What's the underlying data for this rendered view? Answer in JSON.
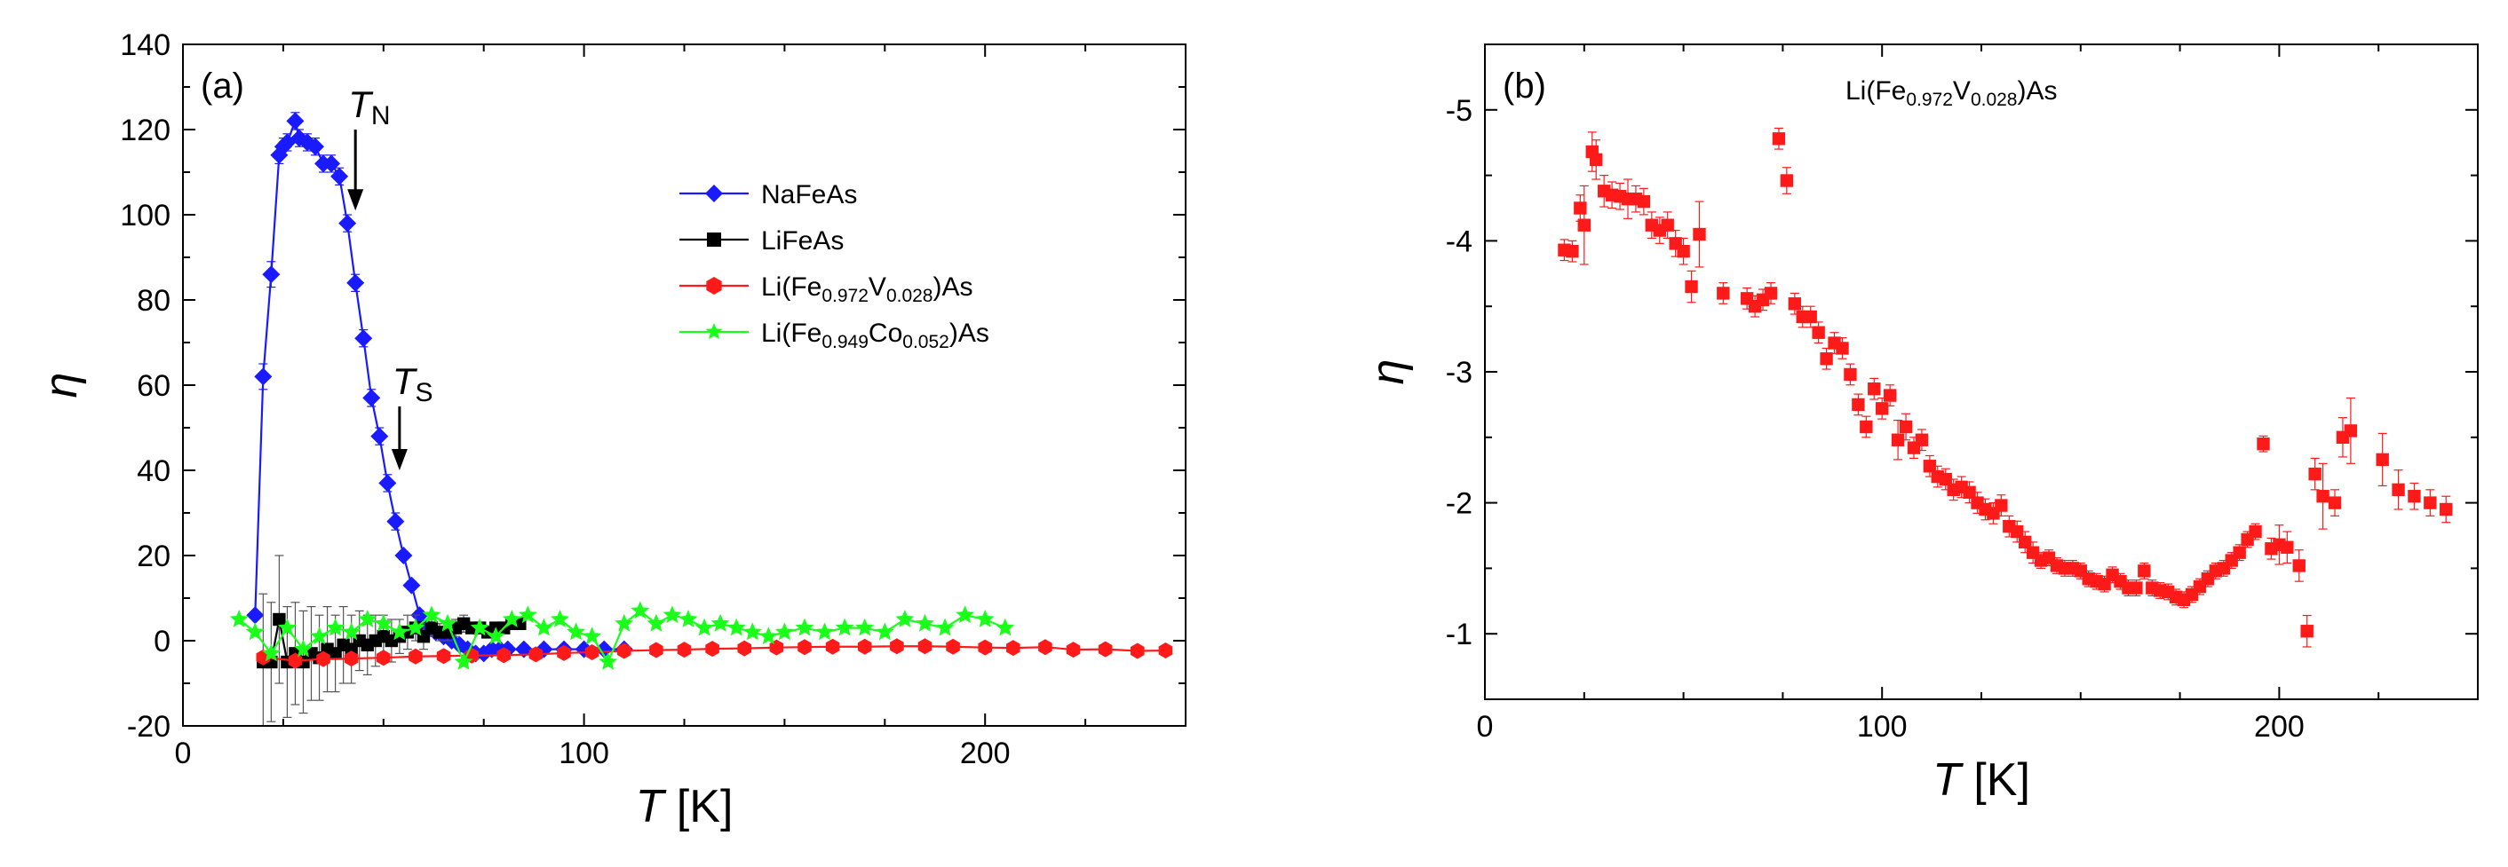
{
  "chart_data": [
    {
      "id": "a",
      "type": "line",
      "panel_label": "(a)",
      "xlabel_italic": "T",
      "xlabel_unit": " [K]",
      "ylabel": "η",
      "xlim": [
        0,
        250
      ],
      "ylim": [
        -20,
        140
      ],
      "xticks": [
        0,
        100,
        200
      ],
      "yticks": [
        -20,
        0,
        20,
        40,
        60,
        80,
        100,
        120,
        140
      ],
      "annotations": [
        {
          "id": "TN",
          "letter": "T",
          "sub": "N",
          "x": 43,
          "arrow_from": 120,
          "arrow_to": 101
        },
        {
          "id": "TS",
          "letter": "T",
          "sub": "S",
          "x": 54,
          "arrow_from": 55,
          "arrow_to": 40
        }
      ],
      "legend_position": "center-right",
      "series": [
        {
          "name": "NaFeAs",
          "label_parts": [
            [
              "NaFeAs",
              ""
            ]
          ],
          "color": "#1a1aff",
          "marker": "diamond",
          "x": [
            18,
            20,
            22,
            24,
            25,
            26,
            28,
            29,
            31,
            33,
            35,
            37,
            39,
            41,
            43,
            45,
            47,
            49,
            51,
            53,
            55,
            57,
            59,
            61,
            63,
            65,
            67,
            69,
            71,
            73,
            75,
            77,
            79,
            81,
            85,
            90,
            95,
            100,
            105,
            110
          ],
          "y": [
            6,
            62,
            86,
            114,
            116,
            117,
            122,
            118,
            117,
            116,
            112,
            112,
            109,
            98,
            84,
            71,
            57,
            48,
            37,
            28,
            20,
            13,
            6,
            3,
            2,
            1,
            0,
            -1,
            -2,
            -3,
            -3,
            -2,
            -2,
            -2,
            -2,
            -2,
            -2,
            -2,
            -2,
            -2
          ],
          "err": [
            0,
            3,
            3,
            2,
            2,
            2,
            2,
            2,
            2,
            2,
            2,
            2,
            2,
            2,
            2,
            2,
            2,
            2,
            2,
            2,
            1,
            1,
            1,
            1,
            1,
            1,
            1,
            1,
            1,
            1,
            1,
            1,
            1,
            1,
            1,
            1,
            1,
            1,
            1,
            1
          ]
        },
        {
          "name": "LiFeAs",
          "label_parts": [
            [
              "LiFeAs",
              ""
            ]
          ],
          "color": "#000000",
          "marker": "square",
          "x": [
            20,
            22,
            24,
            26,
            28,
            30,
            32,
            34,
            36,
            38,
            40,
            42,
            44,
            46,
            48,
            50,
            52,
            54,
            56,
            58,
            60,
            62,
            64,
            66,
            68,
            70,
            72,
            74,
            76,
            78,
            80,
            82,
            84
          ],
          "y": [
            -5,
            -5,
            5,
            -5,
            -3,
            -5,
            -3,
            -4,
            -2,
            -3,
            -1,
            -2,
            0,
            -1,
            0,
            1,
            0,
            1,
            2,
            3,
            1,
            3,
            2,
            2,
            3,
            4,
            3,
            3,
            2,
            3,
            3,
            4,
            4
          ],
          "err": [
            16,
            14,
            15,
            13,
            12,
            12,
            11,
            10,
            10,
            9,
            9,
            8,
            7,
            7,
            6,
            5,
            5,
            4,
            4,
            3,
            3,
            2,
            2,
            2,
            2,
            2,
            1,
            1,
            1,
            1,
            1,
            1,
            1
          ]
        },
        {
          "name": "Li(Fe0.972V0.028)As",
          "label_parts": [
            [
              "Li(Fe",
              ""
            ],
            [
              "0.972",
              "sub"
            ],
            [
              "V",
              ""
            ],
            [
              "0.028",
              "sub"
            ],
            [
              ")As",
              ""
            ]
          ],
          "color": "#ff1a1a",
          "marker": "hexagon",
          "x": [
            20,
            28,
            35,
            42,
            50,
            58,
            65,
            72,
            80,
            88,
            95,
            102,
            110,
            118,
            125,
            132,
            140,
            148,
            155,
            162,
            170,
            178,
            185,
            192,
            200,
            207,
            215,
            222,
            230,
            238,
            245
          ],
          "y": [
            -3.9,
            -4.7,
            -4.3,
            -4.2,
            -4.0,
            -3.7,
            -3.6,
            -3.5,
            -3.4,
            -3.2,
            -2.9,
            -2.7,
            -2.4,
            -2.2,
            -2.1,
            -1.9,
            -1.8,
            -1.6,
            -1.5,
            -1.4,
            -1.4,
            -1.3,
            -1.3,
            -1.4,
            -1.6,
            -1.7,
            -1.5,
            -2.1,
            -2.0,
            -2.4,
            -2.3
          ],
          "err": [
            0,
            0,
            0,
            0,
            0,
            0,
            0,
            0,
            0,
            0,
            0,
            0,
            0,
            0,
            0,
            0,
            0,
            0,
            0,
            0,
            0,
            0,
            0,
            0,
            0,
            0,
            0,
            0,
            0,
            0,
            0
          ]
        },
        {
          "name": "Li(Fe0.949Co0.052)As",
          "label_parts": [
            [
              "Li(Fe",
              ""
            ],
            [
              "0.949",
              "sub"
            ],
            [
              "Co",
              ""
            ],
            [
              "0.052",
              "sub"
            ],
            [
              ")As",
              ""
            ]
          ],
          "color": "#1aff1a",
          "marker": "star",
          "x": [
            14,
            18,
            22,
            26,
            30,
            34,
            38,
            42,
            46,
            50,
            54,
            58,
            62,
            66,
            70,
            74,
            78,
            82,
            86,
            90,
            94,
            98,
            102,
            106,
            110,
            114,
            118,
            122,
            126,
            130,
            134,
            138,
            142,
            146,
            150,
            155,
            160,
            165,
            170,
            175,
            180,
            185,
            190,
            195,
            200,
            205
          ],
          "y": [
            5,
            2,
            -3,
            3,
            -2,
            1,
            3,
            2,
            5,
            4,
            2,
            3,
            6,
            4,
            -5,
            3,
            1,
            5,
            6,
            3,
            5,
            2,
            1,
            -5,
            4,
            7,
            4,
            6,
            5,
            3,
            4,
            3,
            2,
            1,
            2,
            3,
            2,
            3,
            3,
            2,
            5,
            4,
            3,
            6,
            5,
            3
          ],
          "err": [
            0,
            0,
            0,
            0,
            0,
            0,
            0,
            0,
            0,
            0,
            0,
            0,
            0,
            0,
            0,
            0,
            0,
            0,
            0,
            0,
            0,
            0,
            0,
            0,
            0,
            0,
            0,
            0,
            0,
            0,
            0,
            0,
            0,
            0,
            0,
            0,
            0,
            0,
            0,
            0,
            0,
            0,
            0,
            0,
            0,
            0
          ]
        }
      ]
    },
    {
      "id": "b",
      "type": "scatter",
      "panel_label": "(b)",
      "title_parts": [
        [
          "Li(Fe",
          ""
        ],
        [
          "0.972",
          "sub"
        ],
        [
          "V",
          ""
        ],
        [
          "0.028",
          "sub"
        ],
        [
          ")As",
          ""
        ]
      ],
      "xlabel_italic": "T",
      "xlabel_unit": " [K]",
      "ylabel": "η",
      "xlim": [
        0,
        250
      ],
      "ylim": [
        -0.5,
        -5.5
      ],
      "xticks": [
        0,
        100,
        200
      ],
      "yticks": [
        -1,
        -2,
        -3,
        -4,
        -5
      ],
      "series": [
        {
          "name": "Li(Fe0.972V0.028)As",
          "color": "#ff1a1a",
          "marker": "square",
          "x": [
            20,
            22,
            24,
            25,
            27,
            28,
            30,
            32,
            34,
            36,
            38,
            40,
            42,
            44,
            46,
            48,
            50,
            52,
            54,
            60,
            66,
            68,
            70,
            72,
            74,
            76,
            78,
            80,
            82,
            84,
            86,
            88,
            90,
            92,
            94,
            96,
            98,
            100,
            102,
            104,
            106,
            108,
            110,
            112,
            114,
            116,
            118,
            120,
            122,
            124,
            126,
            128,
            130,
            132,
            134,
            136,
            138,
            140,
            142,
            144,
            146,
            148,
            150,
            152,
            154,
            156,
            158,
            160,
            162,
            164,
            166,
            168,
            170,
            172,
            174,
            176,
            178,
            180,
            182,
            184,
            186,
            188,
            190,
            192,
            194,
            196,
            198,
            200,
            202,
            205,
            207,
            209,
            211,
            214,
            216,
            218,
            226,
            230,
            234,
            238,
            242
          ],
          "y": [
            -3.93,
            -3.92,
            -4.25,
            -4.12,
            -4.68,
            -4.62,
            -4.38,
            -4.35,
            -4.34,
            -4.32,
            -4.32,
            -4.3,
            -4.12,
            -4.08,
            -4.12,
            -3.98,
            -3.92,
            -3.65,
            -4.05,
            -3.6,
            -3.56,
            -3.5,
            -3.55,
            -3.6,
            -4.78,
            -4.46,
            -3.52,
            -3.42,
            -3.42,
            -3.3,
            -3.1,
            -3.22,
            -3.18,
            -2.98,
            -2.75,
            -2.58,
            -2.87,
            -2.72,
            -2.82,
            -2.48,
            -2.58,
            -2.42,
            -2.48,
            -2.28,
            -2.2,
            -2.18,
            -2.1,
            -2.12,
            -2.08,
            -2.0,
            -1.95,
            -1.92,
            -1.98,
            -1.82,
            -1.78,
            -1.7,
            -1.62,
            -1.56,
            -1.58,
            -1.52,
            -1.5,
            -1.5,
            -1.48,
            -1.42,
            -1.4,
            -1.38,
            -1.45,
            -1.4,
            -1.35,
            -1.35,
            -1.48,
            -1.35,
            -1.33,
            -1.32,
            -1.28,
            -1.26,
            -1.3,
            -1.36,
            -1.42,
            -1.48,
            -1.5,
            -1.56,
            -1.62,
            -1.72,
            -1.78,
            -2.45,
            -1.65,
            -1.68,
            -1.66,
            -1.52,
            -1.02,
            -2.22,
            -2.05,
            -2.0,
            -2.5,
            -2.55,
            -2.33,
            -2.1,
            -2.05,
            -2.0,
            -1.95
          ],
          "err": [
            0.08,
            0.08,
            0.1,
            0.3,
            0.15,
            0.15,
            0.12,
            0.1,
            0.1,
            0.15,
            0.1,
            0.1,
            0.1,
            0.1,
            0.1,
            0.1,
            0.1,
            0.12,
            0.25,
            0.08,
            0.08,
            0.08,
            0.08,
            0.08,
            0.08,
            0.1,
            0.08,
            0.08,
            0.08,
            0.08,
            0.08,
            0.08,
            0.08,
            0.08,
            0.08,
            0.08,
            0.08,
            0.08,
            0.08,
            0.15,
            0.1,
            0.08,
            0.08,
            0.08,
            0.08,
            0.08,
            0.08,
            0.08,
            0.08,
            0.08,
            0.08,
            0.08,
            0.08,
            0.08,
            0.08,
            0.08,
            0.08,
            0.06,
            0.06,
            0.06,
            0.06,
            0.06,
            0.06,
            0.06,
            0.06,
            0.06,
            0.06,
            0.06,
            0.06,
            0.06,
            0.06,
            0.06,
            0.06,
            0.06,
            0.06,
            0.06,
            0.06,
            0.06,
            0.06,
            0.06,
            0.06,
            0.06,
            0.06,
            0.06,
            0.06,
            0.06,
            0.08,
            0.15,
            0.12,
            0.12,
            0.12,
            0.12,
            0.25,
            0.1,
            0.15,
            0.25,
            0.2,
            0.15,
            0.1,
            0.1,
            0.1
          ]
        }
      ]
    }
  ]
}
